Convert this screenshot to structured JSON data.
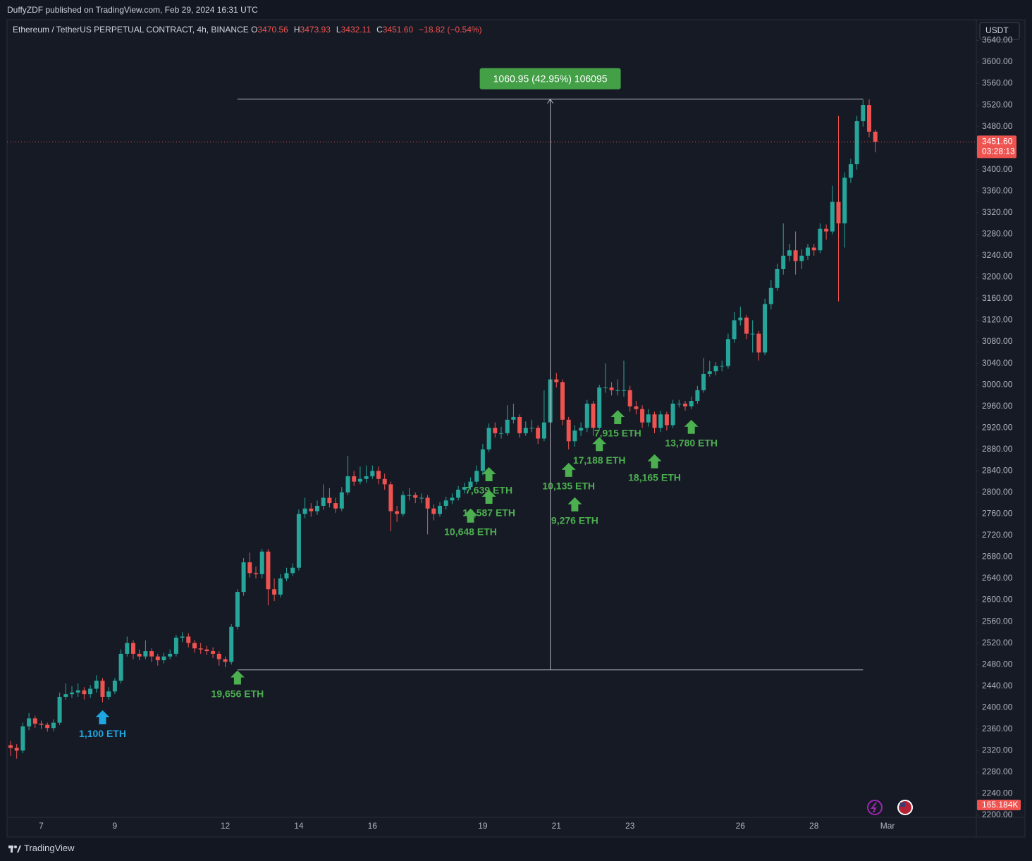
{
  "header": {
    "publisher": "DuffyZDF published on TradingView.com, Feb 29, 2024 16:31 UTC",
    "symbol": "Ethereum / TetherUS PERPETUAL CONTRACT, 4h, BINANCE",
    "ohlc": [
      {
        "key": "O",
        "value": "3470.56"
      },
      {
        "key": "H",
        "value": "3473.93"
      },
      {
        "key": "L",
        "value": "3432.11"
      },
      {
        "key": "C",
        "value": "3451.60"
      }
    ],
    "change": "−18.82 (−0.54%)"
  },
  "currency": "USDT",
  "countdown": "03:28:13",
  "volume_label": "165.184K",
  "footer": "TradingView",
  "chart_data": {
    "type": "candlestick",
    "up_color": "#26a69a",
    "down_color": "#ef5350",
    "categories": [
      null,
      null,
      null,
      null,
      null,
      "7",
      null,
      null,
      null,
      null,
      null,
      null,
      null,
      null,
      null,
      null,
      null,
      "9",
      null,
      null,
      null,
      null,
      null,
      null,
      null,
      null,
      null,
      null,
      null,
      null,
      null,
      null,
      null,
      null,
      null,
      "12",
      null,
      null,
      null,
      null,
      null,
      null,
      null,
      null,
      null,
      null,
      null,
      "14",
      null,
      null,
      null,
      null,
      null,
      null,
      null,
      null,
      null,
      null,
      null,
      "16",
      null,
      null,
      null,
      null,
      null,
      null,
      null,
      null,
      null,
      null,
      null,
      null,
      null,
      null,
      null,
      null,
      null,
      "19",
      null,
      null,
      null,
      null,
      null,
      null,
      null,
      null,
      null,
      null,
      null,
      "21",
      null,
      null,
      null,
      null,
      null,
      null,
      null,
      null,
      null,
      null,
      null,
      "23",
      null,
      null,
      null,
      null,
      null,
      null,
      null,
      null,
      null,
      null,
      null,
      null,
      null,
      null,
      null,
      null,
      null,
      "26",
      null,
      null,
      null,
      null,
      null,
      null,
      null,
      null,
      null,
      null,
      null,
      "28",
      null,
      null,
      null,
      null,
      null,
      null,
      null,
      null,
      null,
      null,
      null,
      "Mar"
    ],
    "open": [
      2330,
      2325,
      2320,
      2365,
      2380,
      2370,
      2368,
      2362,
      2372,
      2420,
      2425,
      2428,
      2432,
      2425,
      2435,
      2450,
      2420,
      2430,
      2450,
      2500,
      2520,
      2500,
      2495,
      2505,
      2495,
      2488,
      2495,
      2500,
      2530,
      2532,
      2520,
      2510,
      2508,
      2505,
      2500,
      2490,
      2485,
      2550,
      2615,
      2670,
      2650,
      2648,
      2690,
      2620,
      2610,
      2640,
      2650,
      2660,
      2760,
      2770,
      2765,
      2775,
      2790,
      2780,
      2770,
      2800,
      2830,
      2820,
      2825,
      2830,
      2840,
      2825,
      2815,
      2765,
      2760,
      2795,
      2795,
      2790,
      2790,
      2770,
      2760,
      2775,
      2785,
      2790,
      2805,
      2810,
      2820,
      2840,
      2880,
      2920,
      2910,
      2910,
      2935,
      2940,
      2910,
      2920,
      2920,
      2900,
      2930,
      3010,
      3005,
      2935,
      2895,
      2915,
      2920,
      2965,
      2920,
      2995,
      2995,
      2990,
      2990,
      2990,
      2960,
      2955,
      2930,
      2945,
      2920,
      2945,
      2925,
      2965,
      2965,
      2960,
      2970,
      2990,
      3020,
      3025,
      3035,
      3035,
      3085,
      3120,
      3125,
      3095,
      3095,
      3060,
      3150,
      3180,
      3215,
      3240,
      3250,
      3230,
      3240,
      3255,
      3250,
      3290,
      3285,
      3340,
      3300,
      3385,
      3410,
      3490,
      3520,
      3470.56,
      null,
      null
    ],
    "high": [
      2338,
      2332,
      2372,
      2390,
      2385,
      2376,
      2372,
      2378,
      2428,
      2445,
      2440,
      2445,
      2438,
      2442,
      2460,
      2455,
      2438,
      2455,
      2508,
      2532,
      2525,
      2508,
      2525,
      2510,
      2500,
      2502,
      2508,
      2535,
      2540,
      2538,
      2525,
      2520,
      2515,
      2512,
      2505,
      2495,
      2555,
      2620,
      2678,
      2688,
      2662,
      2695,
      2695,
      2640,
      2648,
      2660,
      2668,
      2768,
      2790,
      2780,
      2785,
      2815,
      2808,
      2790,
      2810,
      2868,
      2840,
      2848,
      2850,
      2850,
      2848,
      2835,
      2820,
      2775,
      2802,
      2808,
      2800,
      2798,
      2795,
      2778,
      2782,
      2792,
      2798,
      2812,
      2818,
      2828,
      2850,
      2890,
      2928,
      2930,
      2922,
      2962,
      2965,
      2945,
      2932,
      2935,
      2925,
      2990,
      3025,
      3022,
      3010,
      2940,
      2925,
      2930,
      2972,
      2970,
      3000,
      3040,
      3005,
      3010,
      3045,
      2998,
      2970,
      2962,
      2955,
      2950,
      2952,
      2950,
      2972,
      2972,
      2970,
      2978,
      2998,
      3050,
      3045,
      3042,
      3045,
      3095,
      3135,
      3145,
      3130,
      3120,
      3100,
      3160,
      3195,
      3225,
      3300,
      3262,
      3285,
      3252,
      3262,
      3262,
      3300,
      3298,
      3370,
      3500,
      3395,
      3420,
      3500,
      3530,
      3531,
      3473.93,
      null,
      null
    ],
    "low": [
      2310,
      2305,
      2315,
      2358,
      2362,
      2360,
      2355,
      2356,
      2368,
      2415,
      2418,
      2420,
      2415,
      2418,
      2428,
      2410,
      2415,
      2425,
      2445,
      2495,
      2490,
      2488,
      2490,
      2485,
      2478,
      2482,
      2490,
      2495,
      2522,
      2512,
      2502,
      2500,
      2498,
      2492,
      2478,
      2475,
      2480,
      2545,
      2608,
      2642,
      2640,
      2640,
      2590,
      2598,
      2605,
      2635,
      2645,
      2655,
      2752,
      2755,
      2758,
      2768,
      2772,
      2762,
      2765,
      2795,
      2812,
      2815,
      2818,
      2825,
      2815,
      2805,
      2728,
      2745,
      2755,
      2785,
      2780,
      2780,
      2722,
      2748,
      2755,
      2768,
      2778,
      2785,
      2798,
      2805,
      2815,
      2832,
      2875,
      2902,
      2900,
      2905,
      2928,
      2902,
      2905,
      2912,
      2890,
      2895,
      2925,
      2995,
      2925,
      2880,
      2885,
      2905,
      2912,
      2905,
      2915,
      2985,
      2980,
      2980,
      2978,
      2950,
      2945,
      2920,
      2922,
      2910,
      2912,
      2915,
      2920,
      2958,
      2952,
      2955,
      2965,
      2985,
      3015,
      3018,
      3025,
      3030,
      3078,
      3110,
      3085,
      3060,
      3045,
      3055,
      3140,
      3175,
      3205,
      3230,
      3205,
      3215,
      3232,
      3240,
      3245,
      3270,
      3280,
      3155,
      3255,
      3375,
      3400,
      3480,
      3460,
      3432.11,
      null,
      null
    ],
    "close": [
      2325,
      2320,
      2365,
      2380,
      2370,
      2368,
      2362,
      2372,
      2420,
      2425,
      2428,
      2432,
      2425,
      2435,
      2450,
      2420,
      2430,
      2450,
      2500,
      2520,
      2500,
      2495,
      2505,
      2495,
      2488,
      2495,
      2500,
      2530,
      2532,
      2520,
      2510,
      2508,
      2505,
      2500,
      2490,
      2485,
      2550,
      2615,
      2670,
      2650,
      2648,
      2690,
      2620,
      2610,
      2640,
      2650,
      2660,
      2760,
      2770,
      2765,
      2775,
      2790,
      2780,
      2770,
      2800,
      2830,
      2820,
      2825,
      2830,
      2840,
      2825,
      2815,
      2765,
      2760,
      2795,
      2795,
      2790,
      2790,
      2770,
      2760,
      2775,
      2785,
      2790,
      2805,
      2810,
      2820,
      2840,
      2880,
      2920,
      2910,
      2910,
      2935,
      2940,
      2910,
      2920,
      2920,
      2900,
      2930,
      3010,
      3005,
      2935,
      2895,
      2915,
      2920,
      2965,
      2920,
      2995,
      2995,
      2990,
      2990,
      2990,
      2960,
      2955,
      2930,
      2945,
      2920,
      2945,
      2925,
      2965,
      2965,
      2960,
      2970,
      2990,
      3020,
      3025,
      3035,
      3035,
      3085,
      3120,
      3125,
      3095,
      3095,
      3060,
      3150,
      3180,
      3215,
      3240,
      3250,
      3230,
      3240,
      3255,
      3250,
      3290,
      3285,
      3340,
      3300,
      3385,
      3410,
      3490,
      3520,
      3470.56,
      3451.6,
      null,
      null
    ],
    "ylim": [
      2196,
      3676
    ],
    "yticks": [
      {
        "value": 2200,
        "label": "2200.00"
      },
      {
        "value": 2240,
        "label": "2240.00"
      },
      {
        "value": 2280,
        "label": "2280.00"
      },
      {
        "value": 2320,
        "label": "2320.00"
      },
      {
        "value": 2360,
        "label": "2360.00"
      },
      {
        "value": 2400,
        "label": "2400.00"
      },
      {
        "value": 2440,
        "label": "2440.00"
      },
      {
        "value": 2480,
        "label": "2480.00"
      },
      {
        "value": 2520,
        "label": "2520.00"
      },
      {
        "value": 2560,
        "label": "2560.00"
      },
      {
        "value": 2600,
        "label": "2600.00"
      },
      {
        "value": 2640,
        "label": "2640.00"
      },
      {
        "value": 2680,
        "label": "2680.00"
      },
      {
        "value": 2720,
        "label": "2720.00"
      },
      {
        "value": 2760,
        "label": "2760.00"
      },
      {
        "value": 2800,
        "label": "2800.00"
      },
      {
        "value": 2840,
        "label": "2840.00"
      },
      {
        "value": 2880,
        "label": "2880.00"
      },
      {
        "value": 2920,
        "label": "2920.00"
      },
      {
        "value": 2960,
        "label": "2960.00"
      },
      {
        "value": 3000,
        "label": "3000.00"
      },
      {
        "value": 3040,
        "label": "3040.00"
      },
      {
        "value": 3080,
        "label": "3080.00"
      },
      {
        "value": 3120,
        "label": "3120.00"
      },
      {
        "value": 3160,
        "label": "3160.00"
      },
      {
        "value": 3200,
        "label": "3200.00"
      },
      {
        "value": 3240,
        "label": "3240.00"
      },
      {
        "value": 3280,
        "label": "3280.00"
      },
      {
        "value": 3320,
        "label": "3320.00"
      },
      {
        "value": 3360,
        "label": "3360.00"
      },
      {
        "value": 3400,
        "label": "3400.00"
      },
      {
        "value": 3440,
        "label": "3440.00"
      },
      {
        "value": 3480,
        "label": "3480.00"
      },
      {
        "value": 3520,
        "label": "3520.00"
      },
      {
        "value": 3560,
        "label": "3560.00"
      },
      {
        "value": 3600,
        "label": "3600.00"
      },
      {
        "value": 3640,
        "label": "3640.00"
      }
    ],
    "last_price": {
      "value": 3451.6,
      "label": "3451.60"
    },
    "measure": {
      "start": 37,
      "end": 139,
      "low": 2470.05,
      "high": 3531,
      "label": "1060.95 (42.95%) 106095"
    },
    "annotations": [
      {
        "label": "1,100 ETH",
        "index": 15,
        "price": 2395,
        "color": "#1ea7e1"
      },
      {
        "label": "19,656 ETH",
        "index": 37,
        "price": 2469,
        "color": "#4caf50"
      },
      {
        "label": "10,648 ETH",
        "index": 75,
        "price": 2770,
        "color": "#4caf50"
      },
      {
        "label": "12,587 ETH",
        "index": 78,
        "price": 2805,
        "color": "#4caf50"
      },
      {
        "label": "7,639 ETH",
        "index": 78,
        "price": 2847,
        "color": "#4caf50"
      },
      {
        "label": "10,135 ETH",
        "index": 91,
        "price": 2855,
        "color": "#4caf50"
      },
      {
        "label": "9,276 ETH",
        "index": 92,
        "price": 2791,
        "color": "#4caf50"
      },
      {
        "label": "17,188 ETH",
        "index": 96,
        "price": 2903,
        "color": "#4caf50"
      },
      {
        "label": "7,915 ETH",
        "index": 99,
        "price": 2953,
        "color": "#4caf50"
      },
      {
        "label": "18,165 ETH",
        "index": 105,
        "price": 2871,
        "color": "#4caf50"
      },
      {
        "label": "13,780 ETH",
        "index": 111,
        "price": 2935,
        "color": "#4caf50"
      }
    ]
  }
}
